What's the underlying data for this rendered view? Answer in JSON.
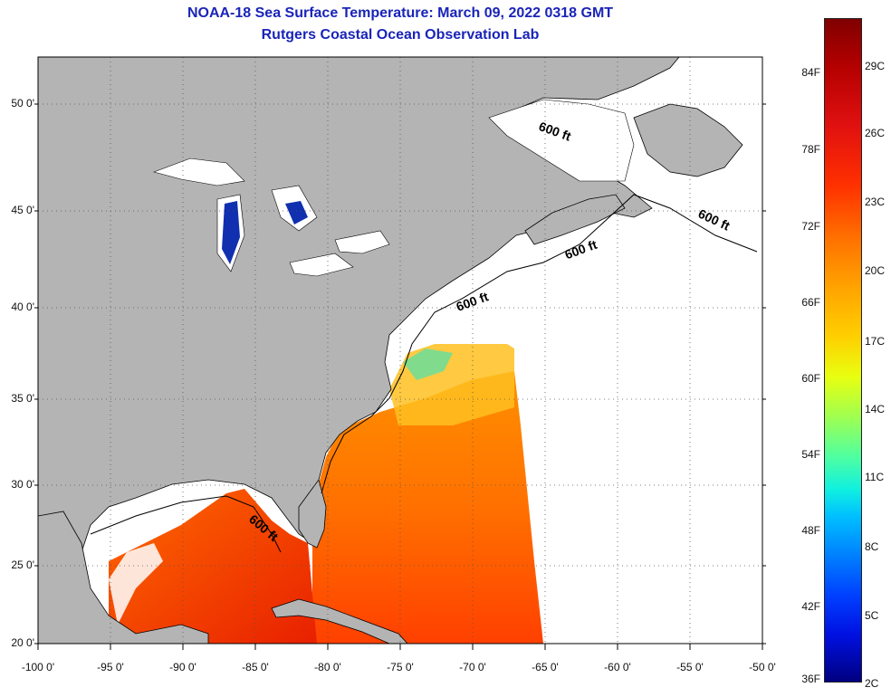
{
  "title_line1": "NOAA-18 Sea Surface Temperature:  March 09, 2022 0318 GMT",
  "title_line2": "Rutgers Coastal Ocean Observation Lab",
  "y_ticks": [
    "50 0'",
    "45 0'",
    "40 0'",
    "35 0'",
    "30 0'",
    "25 0'",
    "20 0'"
  ],
  "y_tick_values": [
    50,
    45,
    40,
    35,
    30,
    25,
    20
  ],
  "x_ticks": [
    "-100 0'",
    "-95 0'",
    "-90 0'",
    "-85 0'",
    "-80 0'",
    "-75 0'",
    "-70 0'",
    "-65 0'",
    "-60 0'",
    "-55 0'",
    "-50 0'"
  ],
  "x_tick_values": [
    -100,
    -95,
    -90,
    -85,
    -80,
    -75,
    -70,
    -65,
    -60,
    -55,
    -50
  ],
  "contours": [
    {
      "label": "600 ft",
      "lon": -65.5,
      "lat": 48.8
    },
    {
      "label": "600 ft",
      "lon": -54.5,
      "lat": 44.7
    },
    {
      "label": "600 ft",
      "lon": -63.5,
      "lat": 42.5
    },
    {
      "label": "600 ft",
      "lon": -71.0,
      "lat": 39.8
    },
    {
      "label": "600 ft",
      "lon": -85.5,
      "lat": 27.8
    }
  ],
  "colorbar": {
    "fahrenheit": [
      "84F",
      "78F",
      "72F",
      "66F",
      "60F",
      "54F",
      "48F",
      "42F",
      "36F"
    ],
    "celsius": [
      "29C",
      "26C",
      "23C",
      "20C",
      "17C",
      "14C",
      "11C",
      "8C",
      "5C",
      "2C"
    ]
  },
  "colors": {
    "land": "#b4b4b4",
    "ocean_no_data": "#ffffff",
    "title": "#1a24b8"
  }
}
